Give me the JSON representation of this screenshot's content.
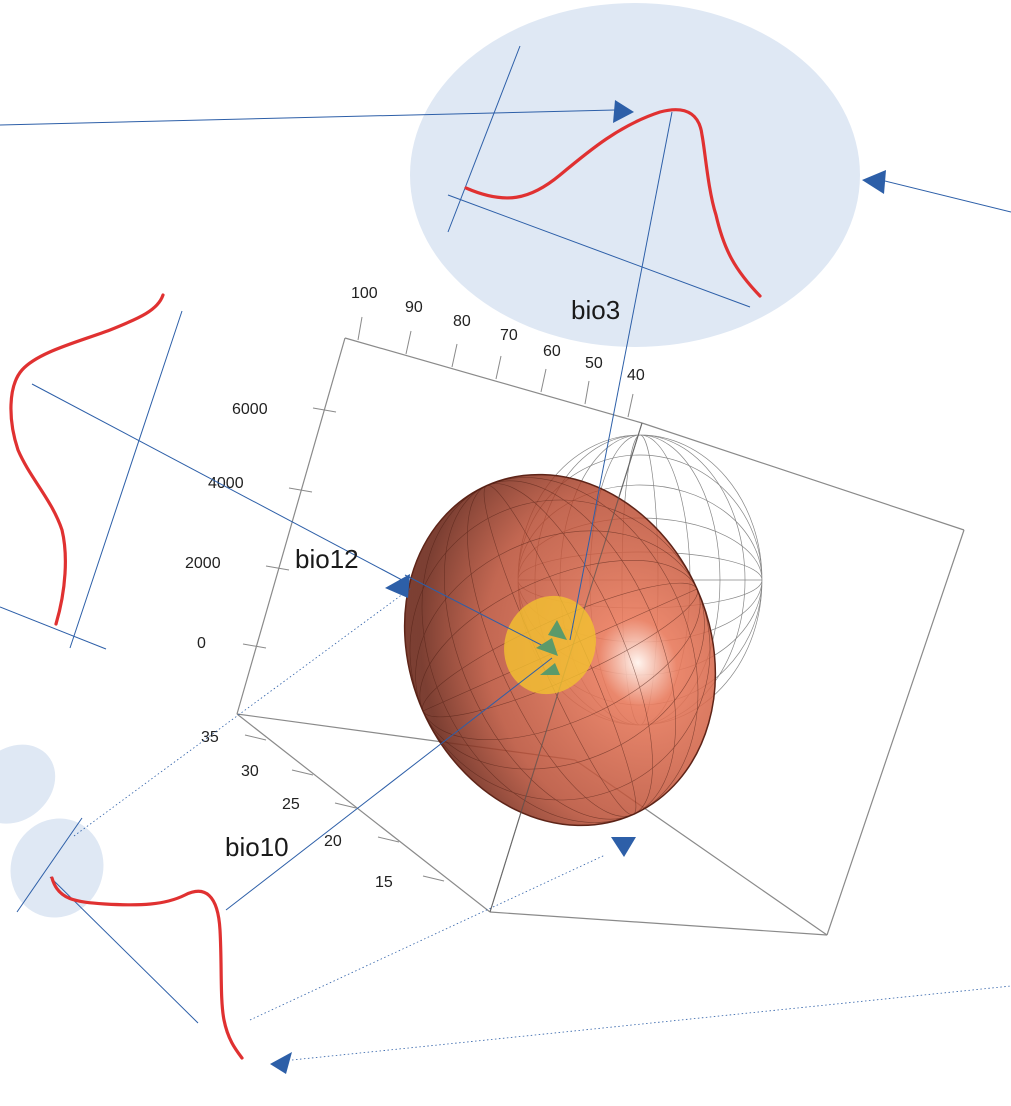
{
  "colors": {
    "background": "#ffffff",
    "box_edge": "#8a8a8a",
    "wire_sphere": "#7a7a7a",
    "ellipsoid_fill": "#b5462c",
    "ellipsoid_edge": "#5e2418",
    "highlight": "#f2c230",
    "density_curve": "#e03131",
    "guide_line": "#2d5fa8",
    "bubble": "#dfe8f4",
    "arrowhead": "#2d5fa8",
    "inner_arrowhead": "#5c9a6a"
  },
  "axis_labels": {
    "bio3": "bio3",
    "bio12": "bio12",
    "bio10": "bio10"
  },
  "ticks": {
    "bio3": [
      "100",
      "90",
      "80",
      "70",
      "60",
      "50",
      "40"
    ],
    "bio12": [
      "6000",
      "4000",
      "2000",
      "0"
    ],
    "bio10": [
      "35",
      "30",
      "25",
      "20",
      "15"
    ]
  }
}
